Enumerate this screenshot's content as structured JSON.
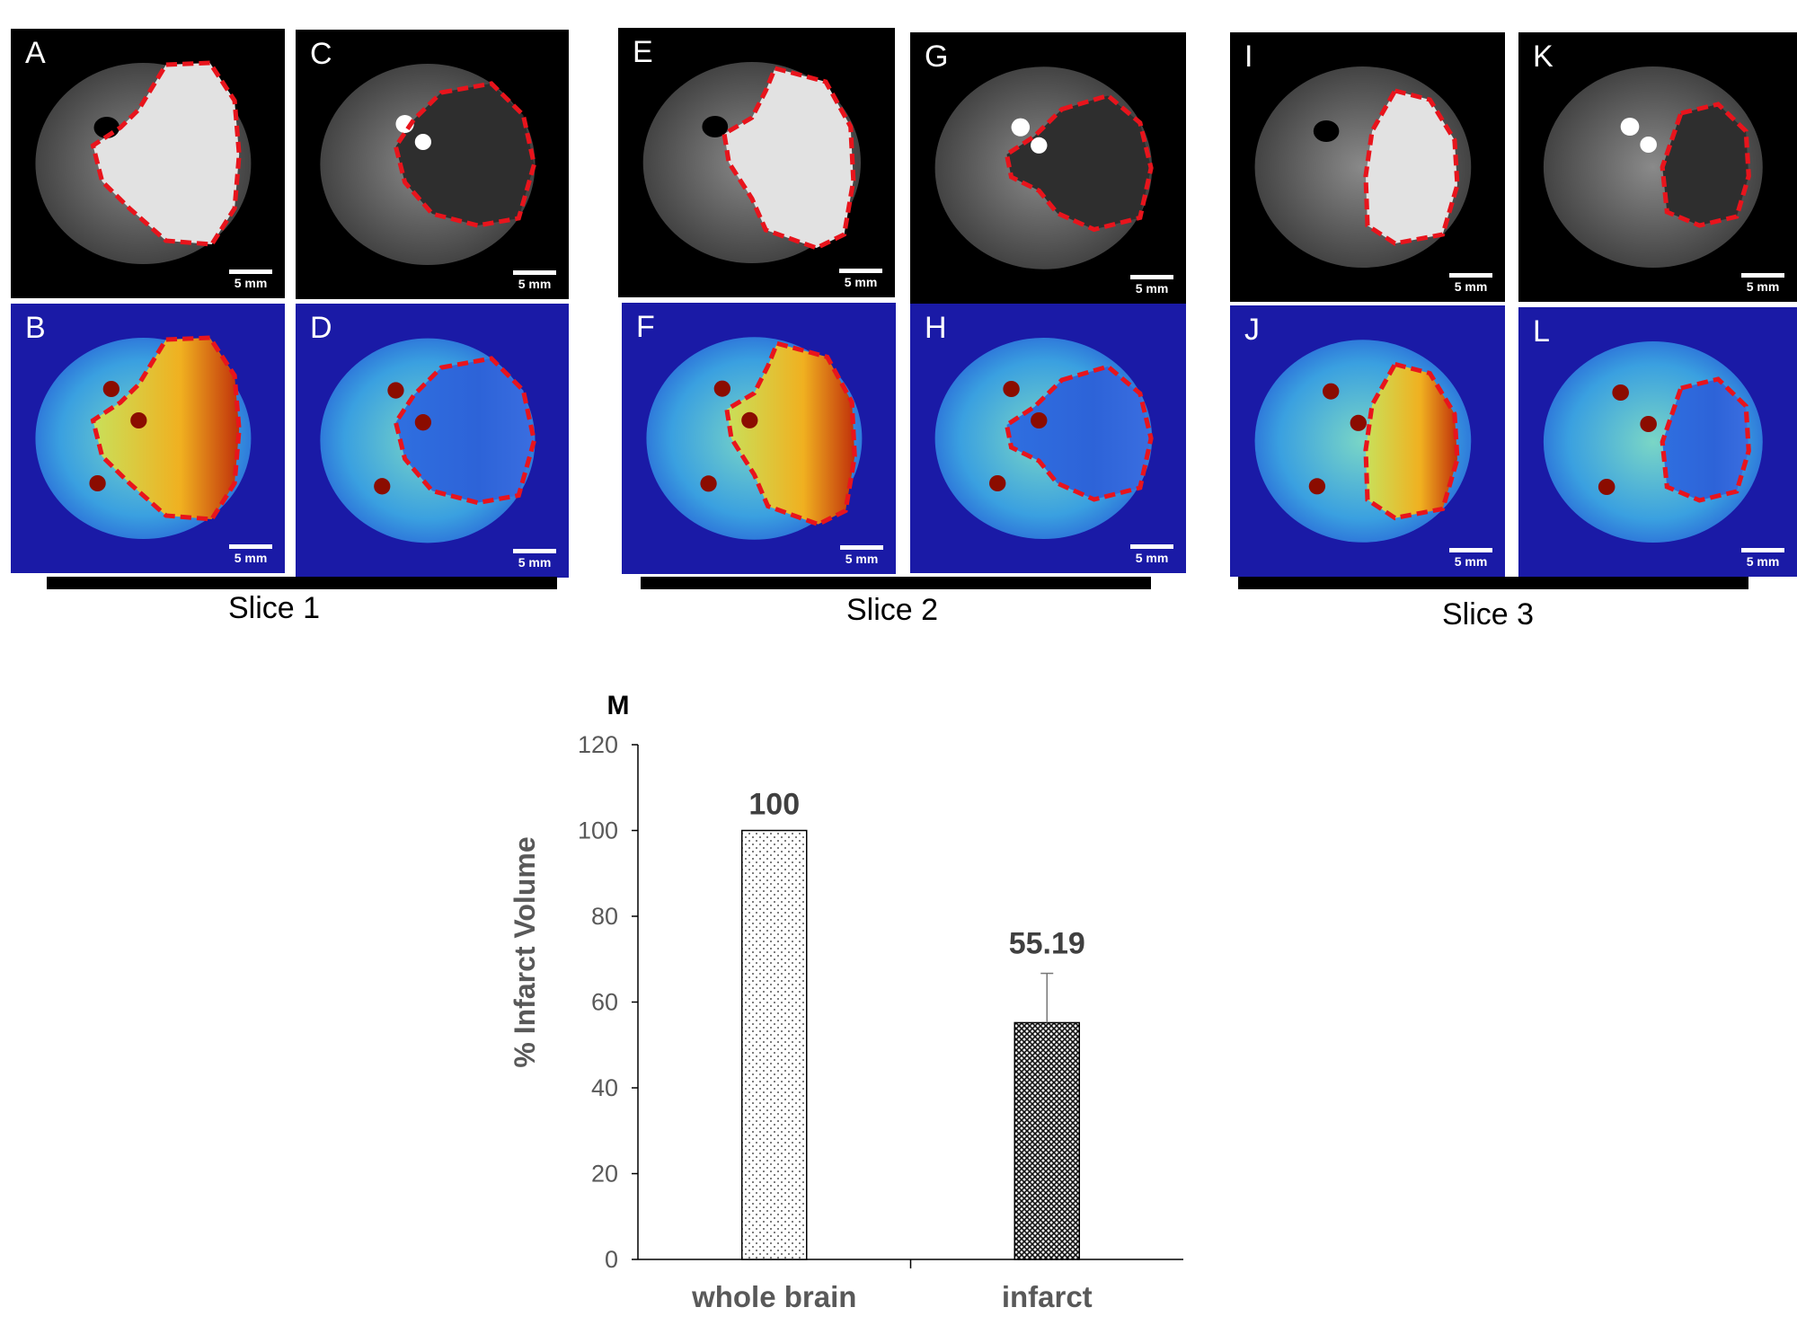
{
  "figure": {
    "panels": [
      {
        "id": "A",
        "label": "A",
        "kind": "dwi",
        "scale": "5 mm"
      },
      {
        "id": "B",
        "label": "B",
        "kind": "map",
        "scale": "5 mm"
      },
      {
        "id": "C",
        "label": "C",
        "kind": "adc",
        "scale": "5 mm"
      },
      {
        "id": "D",
        "label": "D",
        "kind": "map",
        "scale": "5 mm"
      },
      {
        "id": "E",
        "label": "E",
        "kind": "dwi",
        "scale": "5 mm"
      },
      {
        "id": "F",
        "label": "F",
        "kind": "map",
        "scale": "5 mm"
      },
      {
        "id": "G",
        "label": "G",
        "kind": "adc",
        "scale": "5 mm"
      },
      {
        "id": "H",
        "label": "H",
        "kind": "map",
        "scale": "5 mm"
      },
      {
        "id": "I",
        "label": "I",
        "kind": "dwi",
        "scale": "5 mm"
      },
      {
        "id": "J",
        "label": "J",
        "kind": "map",
        "scale": "5 mm"
      },
      {
        "id": "K",
        "label": "K",
        "kind": "adc",
        "scale": "5 mm"
      },
      {
        "id": "L",
        "label": "L",
        "kind": "map",
        "scale": "5 mm"
      }
    ],
    "slices": [
      "Slice 1",
      "Slice 2",
      "Slice 3"
    ],
    "colors": {
      "outline": "#e8141c",
      "map_bg": "#1a1aa6",
      "image_bg": "#000000"
    }
  },
  "chart_data": {
    "type": "bar",
    "panel_label": "M",
    "categories": [
      "whole brain",
      "infarct"
    ],
    "values": [
      100,
      55.19
    ],
    "value_labels": [
      "100",
      "55.19"
    ],
    "error_bars": [
      null,
      11.5
    ],
    "patterns": [
      "dots",
      "crosshatch"
    ],
    "title": "",
    "xlabel": "",
    "ylabel": "% Infarct Volume",
    "ylim": [
      0,
      120
    ],
    "yticks": [
      0,
      20,
      40,
      60,
      80,
      100,
      120
    ],
    "grid": false
  }
}
